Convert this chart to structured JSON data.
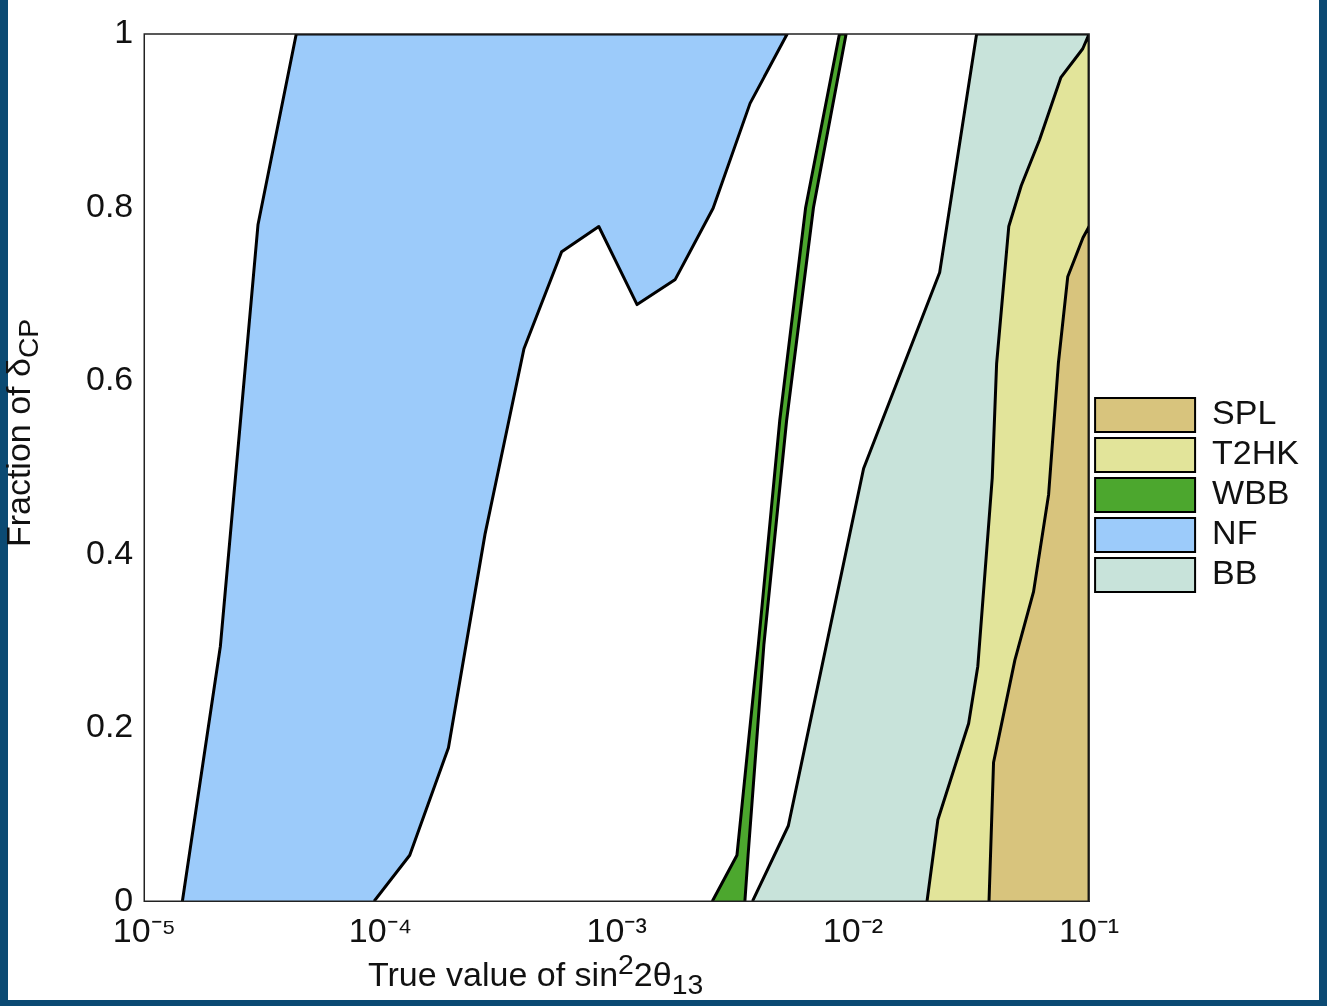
{
  "chart_data": {
    "type": "area",
    "xlabel": "True value of sin$^{2}$2θ$_{13}$",
    "ylabel": "Fraction of δ$_{CP}$",
    "log": "x",
    "grid": false,
    "legend": "right",
    "xlim": [
      1e-05,
      0.1
    ],
    "xticks": [
      {
        "value": 1e-05,
        "label": "10⁻⁵"
      },
      {
        "value": 0.0001,
        "label": "10⁻⁴"
      },
      {
        "value": 0.001,
        "label": "10⁻³"
      },
      {
        "value": 0.01,
        "label": "10⁻²"
      },
      {
        "value": 0.1,
        "label": "10⁻¹"
      }
    ],
    "ylim": [
      0,
      1
    ],
    "yticks": [
      0,
      0.2,
      0.4,
      0.6,
      0.8,
      1
    ],
    "series": [
      {
        "name": "SPL",
        "color": "#d8c47d",
        "x": [
          0.0377,
          0.0394,
          0.0485,
          0.0582,
          0.0674,
          0.0741,
          0.0812,
          0.0942,
          0.1,
          0.1
        ],
        "values": [
          0,
          0.16,
          0.278,
          0.357,
          0.469,
          0.62,
          0.72,
          0.765,
          0.778,
          0
        ]
      },
      {
        "name": "T2HK",
        "color": "#e2e49a",
        "x": [
          0.0206,
          0.0229,
          0.0309,
          0.0338,
          0.0389,
          0.0406,
          0.0457,
          0.0516,
          0.0617,
          0.076,
          0.094,
          0.1,
          0.1
        ],
        "values": [
          0,
          0.094,
          0.205,
          0.271,
          0.488,
          0.62,
          0.778,
          0.825,
          0.878,
          0.95,
          0.983,
          1,
          0
        ]
      },
      {
        "name": "WBB",
        "color": "#4ca72e",
        "x": [
          0.00254,
          0.00323,
          0.00398,
          0.0049,
          0.00631,
          0.00877,
          0.00936,
          0.00681,
          0.00524,
          0.0042,
          0.0036,
          0.00349
        ],
        "values": [
          0,
          0.053,
          0.296,
          0.554,
          0.8,
          1,
          1,
          0.8,
          0.554,
          0.296,
          0.053,
          0
        ]
      },
      {
        "name": "NF",
        "color": "#9ccbfa",
        "x": [
          1.45e-05,
          2.1e-05,
          3.03e-05,
          4.4e-05,
          0.00527,
          0.00367,
          0.00256,
          0.00177,
          0.00122,
          0.00084,
          0.000585,
          0.000405,
          0.000277,
          0.000194,
          0.000133,
          9.4e-05
        ],
        "values": [
          0,
          0.294,
          0.78,
          1,
          1,
          0.92,
          0.799,
          0.717,
          0.688,
          0.778,
          0.749,
          0.637,
          0.423,
          0.177,
          0.053,
          0
        ]
      },
      {
        "name": "BB",
        "color": "#c8e3da",
        "x": [
          0.00376,
          0.00533,
          0.0111,
          0.0233,
          0.0334,
          0.1,
          0.1
        ],
        "values": [
          0,
          0.087,
          0.499,
          0.725,
          1,
          1,
          0
        ]
      }
    ]
  }
}
